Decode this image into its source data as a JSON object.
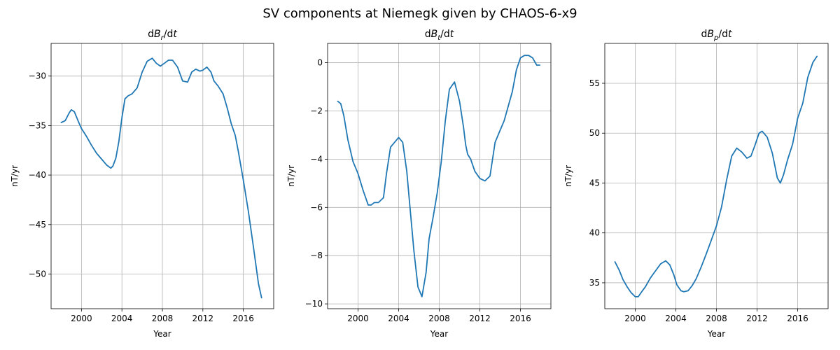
{
  "figure": {
    "suptitle": "SV components at Niemegk given by CHAOS-6-x9"
  },
  "colors": {
    "series": "#1f77b4",
    "grid": "#b0b0b0",
    "axes": "#000000"
  },
  "chart_data": [
    {
      "type": "line",
      "title": "dB_r/dt",
      "title_base": "dB",
      "title_sub": "r",
      "title_tail": "/dt",
      "xlabel": "Year",
      "ylabel": "nT/yr",
      "xlim": [
        1997.0,
        2019.0
      ],
      "ylim": [
        -53.5,
        -26.7
      ],
      "xticks": [
        2000,
        2004,
        2008,
        2012,
        2016
      ],
      "yticks": [
        -50,
        -45,
        -40,
        -35,
        -30
      ],
      "ytick_labels": [
        "−50",
        "−45",
        "−40",
        "−35",
        "−30"
      ],
      "grid": true,
      "series": [
        {
          "x": [
            1998.0,
            1998.4,
            1998.8,
            1999.0,
            1999.3,
            1999.7,
            2000.0,
            2000.5,
            2001.0,
            2001.5,
            2002.0,
            2002.5,
            2002.9,
            2003.1,
            2003.4,
            2003.7,
            2004.0,
            2004.3,
            2004.6,
            2005.0,
            2005.5,
            2006.0,
            2006.5,
            2007.0,
            2007.4,
            2007.8,
            2008.2,
            2008.6,
            2009.0,
            2009.5,
            2010.0,
            2010.5,
            2010.9,
            2011.3,
            2011.7,
            2012.0,
            2012.4,
            2012.8,
            2013.1,
            2013.5,
            2014.0,
            2014.4,
            2014.8,
            2015.2,
            2015.5,
            2016.0,
            2016.5,
            2017.0,
            2017.5,
            2017.8
          ],
          "y": [
            -34.7,
            -34.5,
            -33.7,
            -33.4,
            -33.6,
            -34.6,
            -35.3,
            -36.1,
            -37.0,
            -37.8,
            -38.4,
            -39.0,
            -39.3,
            -39.1,
            -38.3,
            -36.6,
            -34.2,
            -32.3,
            -32.0,
            -31.8,
            -31.2,
            -29.6,
            -28.5,
            -28.2,
            -28.7,
            -29.0,
            -28.7,
            -28.4,
            -28.4,
            -29.1,
            -30.5,
            -30.6,
            -29.6,
            -29.3,
            -29.5,
            -29.4,
            -29.1,
            -29.6,
            -30.5,
            -31.0,
            -31.8,
            -33.2,
            -34.8,
            -36.0,
            -37.6,
            -40.5,
            -43.7,
            -47.3,
            -51.0,
            -52.4
          ]
        }
      ]
    },
    {
      "type": "line",
      "title": "dB_t/dt",
      "title_base": "dB",
      "title_sub": "t",
      "title_tail": "/dt",
      "xlabel": "Year",
      "ylabel": "nT/yr",
      "xlim": [
        1997.0,
        2019.0
      ],
      "ylim": [
        -10.2,
        0.8
      ],
      "xticks": [
        2000,
        2004,
        2008,
        2012,
        2016
      ],
      "yticks": [
        -10,
        -8,
        -6,
        -4,
        -2,
        0
      ],
      "ytick_labels": [
        "−10",
        "−8",
        "−6",
        "−4",
        "−2",
        "0"
      ],
      "grid": true,
      "series": [
        {
          "x": [
            1998.0,
            1998.3,
            1998.6,
            1999.0,
            1999.5,
            2000.0,
            2000.5,
            2001.0,
            2001.3,
            2001.6,
            2002.0,
            2002.5,
            2002.8,
            2003.2,
            2003.6,
            2004.0,
            2004.4,
            2004.8,
            2005.1,
            2005.5,
            2005.9,
            2006.3,
            2006.7,
            2007.0,
            2007.4,
            2007.8,
            2008.2,
            2008.6,
            2009.0,
            2009.5,
            2010.0,
            2010.4,
            2010.6,
            2010.8,
            2011.1,
            2011.5,
            2012.0,
            2012.5,
            2013.0,
            2013.5,
            2014.0,
            2014.4,
            2014.8,
            2015.2,
            2015.6,
            2016.0,
            2016.4,
            2016.8,
            2017.2,
            2017.6,
            2017.9
          ],
          "y": [
            -1.6,
            -1.7,
            -2.2,
            -3.2,
            -4.1,
            -4.6,
            -5.3,
            -5.9,
            -5.9,
            -5.8,
            -5.8,
            -5.6,
            -4.6,
            -3.5,
            -3.3,
            -3.1,
            -3.3,
            -4.5,
            -5.9,
            -7.8,
            -9.3,
            -9.7,
            -8.7,
            -7.3,
            -6.4,
            -5.4,
            -4.1,
            -2.4,
            -1.1,
            -0.8,
            -1.6,
            -2.7,
            -3.4,
            -3.8,
            -4.0,
            -4.5,
            -4.8,
            -4.9,
            -4.7,
            -3.3,
            -2.8,
            -2.4,
            -1.8,
            -1.2,
            -0.3,
            0.2,
            0.3,
            0.3,
            0.2,
            -0.1,
            -0.1
          ]
        }
      ]
    },
    {
      "type": "line",
      "title": "dB_p/dt",
      "title_base": "dB",
      "title_sub": "p",
      "title_tail": "/dt",
      "xlabel": "Year",
      "ylabel": "nT/yr",
      "xlim": [
        1997.0,
        2019.0
      ],
      "ylim": [
        32.4,
        59.0
      ],
      "xticks": [
        2000,
        2004,
        2008,
        2012,
        2016
      ],
      "yticks": [
        35,
        40,
        45,
        50,
        55
      ],
      "ytick_labels": [
        "35",
        "40",
        "45",
        "50",
        "55"
      ],
      "grid": true,
      "series": [
        {
          "x": [
            1998.0,
            1998.4,
            1998.8,
            1999.2,
            1999.6,
            2000.0,
            2000.3,
            2000.7,
            2001.0,
            2001.5,
            2002.0,
            2002.5,
            2003.0,
            2003.4,
            2003.8,
            2004.1,
            2004.5,
            2004.8,
            2005.2,
            2005.6,
            2006.0,
            2006.5,
            2007.0,
            2007.5,
            2008.0,
            2008.5,
            2009.0,
            2009.5,
            2010.0,
            2010.5,
            2011.0,
            2011.4,
            2011.8,
            2012.2,
            2012.5,
            2013.0,
            2013.5,
            2014.0,
            2014.3,
            2014.6,
            2015.0,
            2015.5,
            2016.0,
            2016.5,
            2017.0,
            2017.5,
            2017.9
          ],
          "y": [
            37.1,
            36.3,
            35.3,
            34.6,
            34.0,
            33.6,
            33.6,
            34.2,
            34.6,
            35.5,
            36.2,
            36.9,
            37.2,
            36.8,
            35.8,
            34.8,
            34.2,
            34.1,
            34.2,
            34.7,
            35.4,
            36.6,
            37.9,
            39.3,
            40.7,
            42.6,
            45.3,
            47.7,
            48.5,
            48.1,
            47.5,
            47.7,
            48.8,
            50.0,
            50.2,
            49.6,
            48.0,
            45.5,
            45.0,
            45.8,
            47.3,
            48.9,
            51.5,
            53.0,
            55.6,
            57.1,
            57.7
          ]
        }
      ]
    }
  ]
}
